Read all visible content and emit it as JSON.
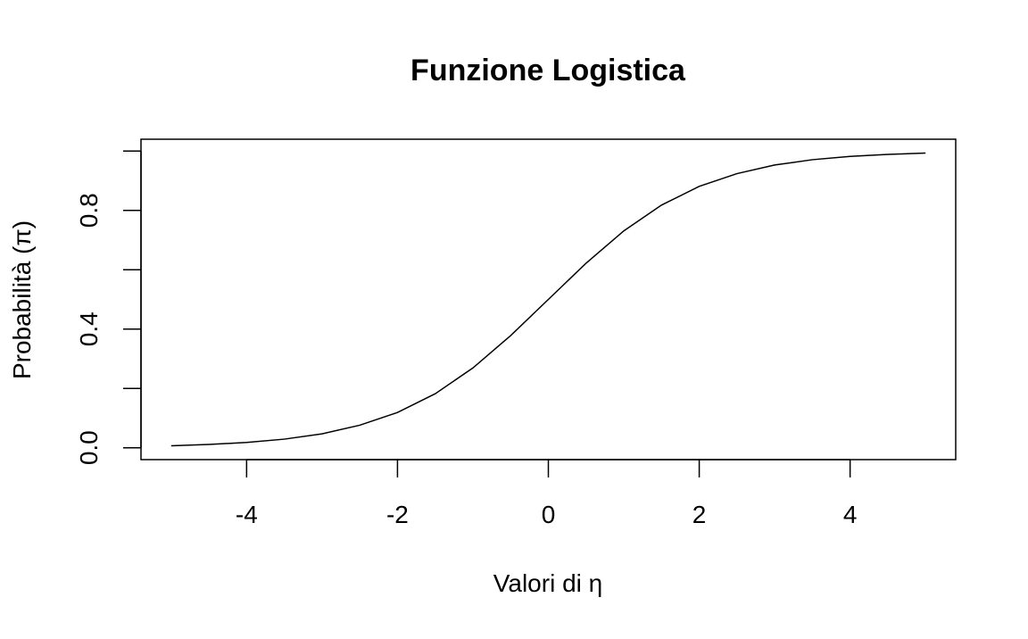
{
  "chart_data": {
    "type": "line",
    "title": "Funzione Logistica",
    "xlabel": "Valori di η",
    "ylabel": "Probabilità (π)",
    "xlim": [
      -5.4,
      5.4
    ],
    "ylim": [
      -0.04,
      1.04
    ],
    "x_ticks": [
      -4,
      -2,
      0,
      2,
      4
    ],
    "x_tick_labels": [
      "-4",
      "-2",
      "0",
      "2",
      "4"
    ],
    "y_ticks": [
      0.0,
      0.2,
      0.4,
      0.6,
      0.8,
      1.0
    ],
    "y_tick_labels": [
      "0.0",
      "",
      "0.4",
      "",
      "0.8",
      ""
    ],
    "grid": false,
    "series": [
      {
        "x": [
          -5,
          -4.5,
          -4,
          -3.5,
          -3,
          -2.5,
          -2,
          -1.5,
          -1,
          -0.5,
          0,
          0.5,
          1,
          1.5,
          2,
          2.5,
          3,
          3.5,
          4,
          4.5,
          5
        ],
        "y": [
          0.0067,
          0.011,
          0.018,
          0.029,
          0.047,
          0.076,
          0.119,
          0.182,
          0.269,
          0.378,
          0.5,
          0.622,
          0.731,
          0.818,
          0.881,
          0.924,
          0.953,
          0.971,
          0.982,
          0.989,
          0.9933
        ],
        "color": "#000000"
      }
    ]
  }
}
